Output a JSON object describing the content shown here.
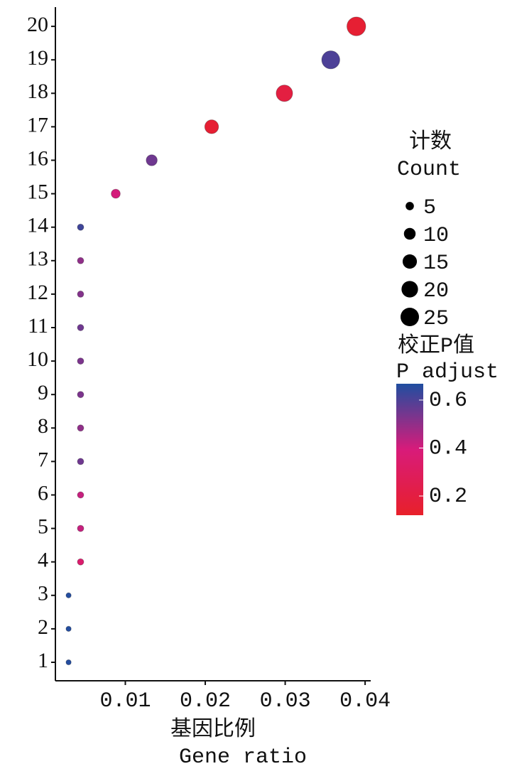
{
  "chart_data": {
    "type": "scatter",
    "categories": [
      "1",
      "2",
      "3",
      "4",
      "5",
      "6",
      "7",
      "8",
      "9",
      "10",
      "11",
      "12",
      "13",
      "14",
      "15",
      "16",
      "17",
      "18",
      "19",
      "20"
    ],
    "values": [
      0.0029,
      0.0029,
      0.0029,
      0.0044,
      0.0044,
      0.0044,
      0.0044,
      0.0044,
      0.0044,
      0.0044,
      0.0044,
      0.0044,
      0.0044,
      0.0044,
      0.0088,
      0.0133,
      0.0208,
      0.0299,
      0.0357,
      0.0389
    ],
    "sizes": [
      2,
      2,
      2,
      3,
      3,
      3,
      3,
      3,
      3,
      3,
      3,
      3,
      3,
      3,
      6,
      9,
      14,
      20,
      24,
      26
    ],
    "p_adjust": [
      0.66,
      0.66,
      0.66,
      0.35,
      0.42,
      0.42,
      0.55,
      0.5,
      0.53,
      0.53,
      0.55,
      0.52,
      0.5,
      0.62,
      0.4,
      0.55,
      0.15,
      0.2,
      0.6,
      0.15
    ],
    "xlim": [
      0.00125,
      0.0407
    ],
    "xticks": [
      0.01,
      0.02,
      0.03,
      0.04
    ],
    "xlabel": "基因比例",
    "xlabel_en": "Gene ratio",
    "size_title": "计数",
    "size_title_en": "Count",
    "size_legend": [
      5,
      10,
      15,
      20,
      25
    ],
    "color_title": "校正P值",
    "color_title_en": "P adjust",
    "color_lim": [
      0.12,
      0.668
    ],
    "color_ticks": [
      0.2,
      0.4,
      0.6
    ],
    "colors": [
      "#e8202a",
      "#d81b7a",
      "#1f4ea0"
    ]
  }
}
